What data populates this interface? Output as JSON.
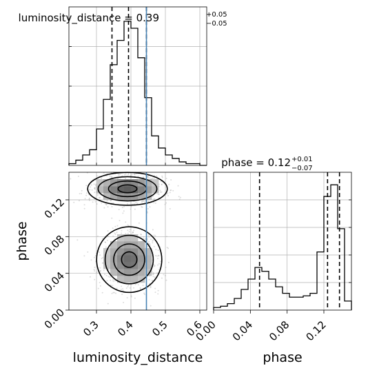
{
  "chart_data": {
    "type": "corner",
    "parameters": [
      "luminosity_distance",
      "phase"
    ],
    "truths": {
      "luminosity_distance": 0.445
    },
    "colors": {
      "hist": "#000000",
      "quantile": "#000000",
      "truth": "#4682b4",
      "grid": "#b0b0b0",
      "scatter": "#9a9a9a"
    },
    "grid": true,
    "panels": {
      "luminosity_distance_hist": {
        "title_main": "luminosity_distance = 0.39",
        "title_upper": "+0.05",
        "title_lower": "−0.05",
        "quantiles": [
          0.345,
          0.393,
          0.445
        ],
        "bin_edges": [
          0.22,
          0.24,
          0.26,
          0.28,
          0.3,
          0.32,
          0.34,
          0.36,
          0.38,
          0.4,
          0.42,
          0.44,
          0.46,
          0.48,
          0.5,
          0.52,
          0.54,
          0.56,
          0.58,
          0.6,
          0.62
        ],
        "counts": [
          1,
          3,
          6,
          9,
          21,
          38,
          58,
          72,
          83,
          79,
          62,
          39,
          17,
          10,
          6,
          4,
          2,
          1,
          1,
          0
        ],
        "xlim": [
          0.22,
          0.62
        ],
        "grid_x": [
          0.3,
          0.4,
          0.5,
          0.6
        ]
      },
      "phase_hist": {
        "title_main": "phase = 0.12",
        "title_upper": "+0.01",
        "title_lower": "−0.07",
        "quantiles": [
          0.05,
          0.124,
          0.137
        ],
        "bin_edges": [
          0.0,
          0.0075,
          0.015,
          0.0225,
          0.03,
          0.0375,
          0.045,
          0.0525,
          0.06,
          0.0675,
          0.075,
          0.0825,
          0.09,
          0.0975,
          0.105,
          0.1125,
          0.12,
          0.1275,
          0.135,
          0.1425,
          0.15
        ],
        "counts": [
          2,
          3,
          5,
          9,
          16,
          24,
          33,
          30,
          24,
          18,
          13,
          10,
          10,
          11,
          13,
          45,
          88,
          97,
          63,
          7
        ],
        "xlim": [
          0.0,
          0.15
        ],
        "xticks": [
          0.0,
          0.04,
          0.08,
          0.12
        ],
        "xtick_labels": [
          "0.00",
          "0.04",
          "0.08",
          "0.12"
        ],
        "xlabel": "phase"
      },
      "joint": {
        "xlim": [
          0.22,
          0.62
        ],
        "ylim": [
          0.0,
          0.15
        ],
        "xticks": [
          0.3,
          0.4,
          0.5,
          0.6
        ],
        "xtick_labels": [
          "0.3",
          "0.4",
          "0.5",
          "0.6"
        ],
        "yticks": [
          0.0,
          0.04,
          0.08,
          0.12
        ],
        "ytick_labels": [
          "0.00",
          "0.04",
          "0.08",
          "0.12"
        ],
        "xlabel": "luminosity_distance",
        "ylabel": "phase",
        "modes": [
          {
            "x": 0.39,
            "y": 0.132,
            "sx": 0.055,
            "sy": 0.0085,
            "weight": 0.55
          },
          {
            "x": 0.395,
            "y": 0.055,
            "sx": 0.045,
            "sy": 0.017,
            "weight": 0.45
          }
        ]
      }
    }
  }
}
